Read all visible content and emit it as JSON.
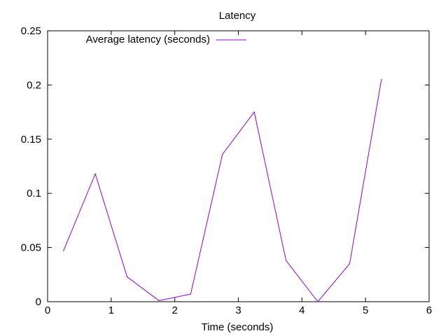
{
  "chart_data": {
    "type": "line",
    "title": "Latency",
    "xlabel": "Time (seconds)",
    "ylabel": "",
    "xlim": [
      0,
      6
    ],
    "ylim": [
      0,
      0.25
    ],
    "x_ticks": [
      "0",
      "1",
      "2",
      "3",
      "4",
      "5",
      "6"
    ],
    "y_ticks": [
      "0",
      "0.05",
      "0.1",
      "0.15",
      "0.2",
      "0.25"
    ],
    "grid": false,
    "legend_position": "top-left",
    "series": [
      {
        "name": "Average latency (seconds)",
        "color": "#9400d3",
        "x": [
          0.25,
          0.75,
          1.25,
          1.75,
          2.25,
          2.75,
          3.25,
          3.75,
          4.25,
          4.75,
          5.25
        ],
        "y": [
          0.047,
          0.118,
          0.023,
          0.001,
          0.007,
          0.136,
          0.175,
          0.038,
          0.0,
          0.035,
          0.205
        ]
      }
    ]
  }
}
